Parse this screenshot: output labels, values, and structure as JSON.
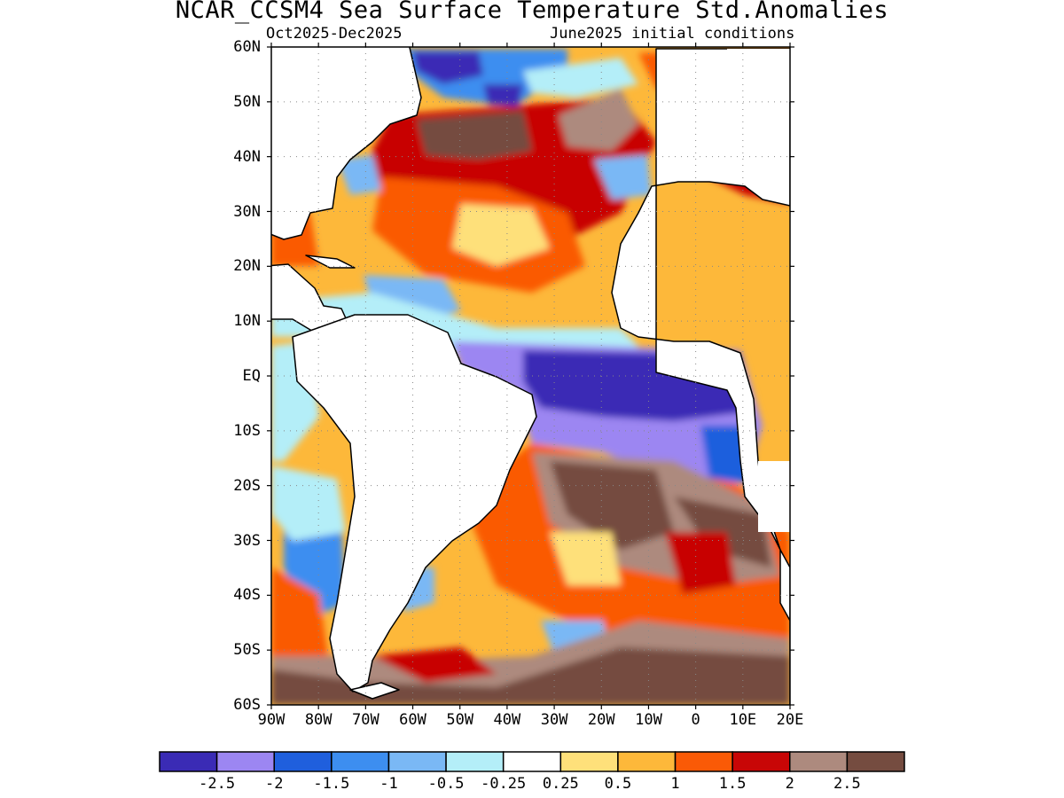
{
  "title": "NCAR_CCSM4 Sea Surface Temperature Std.Anomalies",
  "subtitle_left": "Oct2025-Dec2025",
  "subtitle_right": "June2025 initial conditions",
  "lat_labels": [
    "60N",
    "50N",
    "40N",
    "30N",
    "20N",
    "10N",
    "EQ",
    "10S",
    "20S",
    "30S",
    "40S",
    "50S",
    "60S"
  ],
  "lon_labels": [
    "90W",
    "80W",
    "70W",
    "60W",
    "50W",
    "40W",
    "30W",
    "20W",
    "10W",
    "0",
    "10E",
    "20E"
  ],
  "colors": {
    "below_-2.5": "#3a2bb5",
    "-2.5_to_-2": "#9c86f2",
    "-2_to_-1.5": "#1f5fdd",
    "-1.5_to_-1": "#3d8ef0",
    "-1_to_-0.5": "#7ab8f5",
    "-0.5_to_-0.25": "#b4eef8",
    "-0.25_to_0.25": "#ffffff",
    "0.25_to_0.5": "#fee07a",
    "0.5_to_1": "#fdb83a",
    "1_to_1.5": "#fa5a06",
    "1.5_to_2": "#c80606",
    "2_to_2.5": "#ad8a7e",
    "above_2.5": "#754c40",
    "land": "#ffffff",
    "coastline": "#000000"
  },
  "colorbar_labels": [
    "-2.5",
    "-2",
    "-1.5",
    "-1",
    "-0.5",
    "-0.25",
    "0.25",
    "0.5",
    "1",
    "1.5",
    "2",
    "2.5"
  ],
  "colorbar_colors": [
    "#3a2bb5",
    "#9c86f2",
    "#1f5fdd",
    "#3d8ef0",
    "#7ab8f5",
    "#b4eef8",
    "#ffffff",
    "#fee07a",
    "#fdb83a",
    "#fa5a06",
    "#c80606",
    "#ad8a7e",
    "#754c40"
  ]
}
